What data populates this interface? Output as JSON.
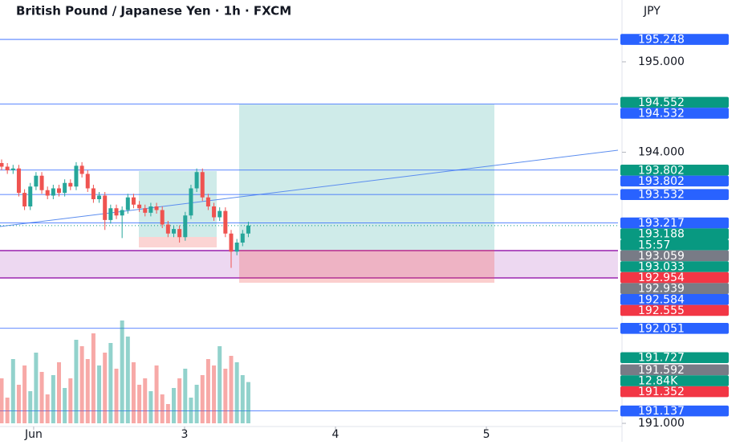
{
  "chart_data": {
    "type": "candlestick",
    "title": "British Pound / Japanese Yen · 1h · FXCM",
    "currency": "JPY",
    "up_color": "#26a69a",
    "down_color": "#ef5350",
    "ylim": [
      190.796,
      195.684
    ],
    "yticks": [
      {
        "value": 195,
        "label": "195.000"
      },
      {
        "value": 194,
        "label": "194.000"
      },
      {
        "value": 191,
        "label": "191.000"
      }
    ],
    "xlim": [
      1.777,
      5.872
    ],
    "xticks": [
      {
        "value": 2,
        "label": "Jun"
      },
      3,
      4,
      5
    ],
    "open": [
      193.88,
      193.84,
      193.8,
      193.82,
      193.55,
      193.4,
      193.62,
      193.74,
      193.58,
      193.52,
      193.6,
      193.55,
      193.66,
      193.62,
      193.85,
      193.76,
      193.6,
      193.48,
      193.52,
      193.25,
      193.38,
      193.3,
      193.36,
      193.5,
      193.42,
      193.38,
      193.33,
      193.4,
      193.36,
      193.2,
      193.1,
      193.15,
      193.06,
      193.3,
      193.6,
      193.78,
      193.5,
      193.4,
      193.28,
      193.35,
      193.1,
      192.9,
      193.0,
      193.1
    ],
    "high": [
      193.92,
      193.88,
      193.86,
      193.86,
      193.59,
      193.66,
      193.78,
      193.78,
      193.62,
      193.64,
      193.64,
      193.7,
      193.7,
      193.89,
      193.89,
      193.8,
      193.64,
      193.56,
      193.56,
      193.42,
      193.42,
      193.4,
      193.54,
      193.54,
      193.46,
      193.42,
      193.44,
      193.44,
      193.4,
      193.24,
      193.19,
      193.19,
      193.34,
      193.64,
      193.82,
      193.82,
      193.54,
      193.44,
      193.39,
      193.39,
      193.14,
      193.04,
      193.14,
      193.23
    ],
    "low": [
      193.8,
      193.76,
      193.76,
      193.51,
      193.36,
      193.36,
      193.58,
      193.54,
      193.48,
      193.48,
      193.51,
      193.51,
      193.58,
      193.58,
      193.72,
      193.56,
      193.44,
      193.44,
      193.14,
      193.21,
      193.26,
      193.05,
      193.32,
      193.38,
      193.34,
      193.29,
      193.29,
      193.32,
      193.16,
      193.06,
      193.06,
      193.0,
      193.02,
      193.26,
      193.56,
      193.46,
      193.36,
      193.24,
      193.24,
      193.06,
      192.72,
      192.86,
      192.96,
      193.06
    ],
    "close": [
      193.84,
      193.8,
      193.82,
      193.55,
      193.4,
      193.62,
      193.74,
      193.58,
      193.52,
      193.6,
      193.55,
      193.66,
      193.62,
      193.85,
      193.76,
      193.6,
      193.48,
      193.52,
      193.25,
      193.38,
      193.3,
      193.36,
      193.5,
      193.42,
      193.38,
      193.33,
      193.4,
      193.36,
      193.2,
      193.1,
      193.15,
      193.06,
      193.3,
      193.6,
      193.78,
      193.5,
      193.4,
      193.28,
      193.35,
      193.1,
      192.9,
      193.0,
      193.1,
      193.188
    ],
    "volume": [
      14,
      8,
      20,
      12,
      18,
      10,
      22,
      16,
      9,
      15,
      19,
      11,
      14,
      26,
      24,
      20,
      28,
      18,
      22,
      25,
      17,
      32,
      27,
      19,
      12,
      14,
      10,
      18,
      9,
      6,
      11,
      14,
      17,
      8,
      12,
      15,
      20,
      18,
      24,
      17,
      21,
      19,
      15,
      12.84
    ],
    "price_tags": [
      {
        "value": 195.248,
        "label": "195.248",
        "color": "#2962ff",
        "line": true
      },
      {
        "value": 194.552,
        "label": "194.552",
        "color": "#089981"
      },
      {
        "value": 194.532,
        "label": "194.532",
        "color": "#2962ff",
        "line": true
      },
      {
        "value": 193.802,
        "label": "193.802",
        "color": "#089981"
      },
      {
        "value": 193.802,
        "label": "193.802",
        "color": "#2962ff",
        "line": true
      },
      {
        "value": 193.532,
        "label": "193.532",
        "color": "#2962ff",
        "line": true
      },
      {
        "value": 193.217,
        "label": "193.217",
        "color": "#2962ff",
        "line": true
      },
      {
        "value": 193.188,
        "label": "193.188",
        "color": "#089981",
        "dotted": true
      },
      {
        "label": "15:57",
        "color": "#089981"
      },
      {
        "value": 193.059,
        "label": "193.059",
        "color": "#787b86"
      },
      {
        "value": 193.033,
        "label": "193.033",
        "color": "#089981"
      },
      {
        "value": 192.954,
        "label": "192.954",
        "color": "#f23645"
      },
      {
        "value": 192.939,
        "label": "192.939",
        "color": "#787b86"
      },
      {
        "value": 192.584,
        "label": "192.584",
        "color": "#2962ff"
      },
      {
        "value": 192.555,
        "label": "192.555",
        "color": "#f23645"
      },
      {
        "value": 192.051,
        "label": "192.051",
        "color": "#2962ff",
        "line": true
      },
      {
        "value": 191.727,
        "label": "191.727",
        "color": "#089981"
      },
      {
        "value": 191.592,
        "label": "191.592",
        "color": "#787b86"
      },
      {
        "label": "12.84K",
        "color": "#089981"
      },
      {
        "value": 191.352,
        "label": "191.352",
        "color": "#f23645"
      },
      {
        "value": 191.137,
        "label": "191.137",
        "color": "#2962ff",
        "line": true
      }
    ]
  }
}
